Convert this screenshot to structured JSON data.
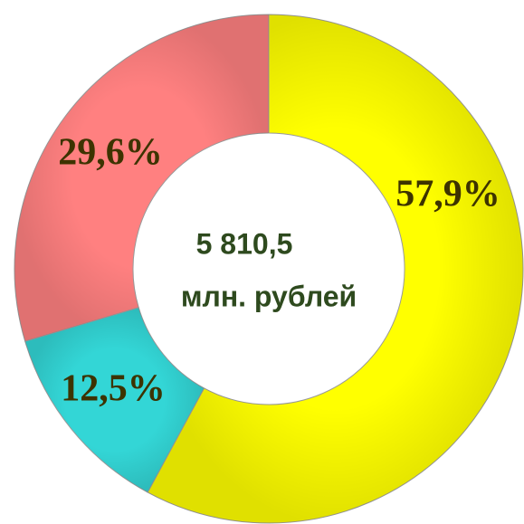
{
  "chart_data": {
    "type": "donut",
    "categories": [
      null,
      null,
      null
    ],
    "values": [
      57.9,
      12.5,
      29.6
    ],
    "value_labels": [
      "57,9%",
      "12,5%",
      "29,6%"
    ],
    "colors": [
      "#ffff00",
      "#33d6d6",
      "#ff8080"
    ],
    "annotations": [
      "5 810,5",
      "млн. рублей"
    ]
  }
}
